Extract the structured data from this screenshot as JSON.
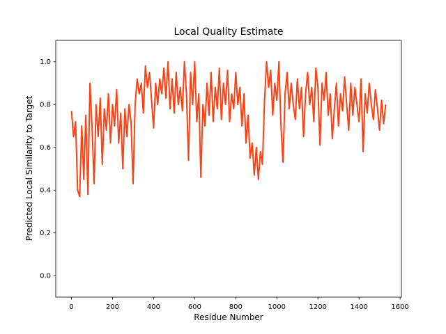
{
  "chart_data": {
    "type": "line",
    "title": "Local Quality Estimate",
    "xlabel": "Residue Number",
    "ylabel": "Predicted Local Similarity to Target",
    "xlim": [
      -76.5,
      1606.5
    ],
    "ylim": [
      -0.1,
      1.1
    ],
    "xticks": [
      0,
      200,
      400,
      600,
      800,
      1000,
      1200,
      1400,
      1600
    ],
    "yticks": [
      {
        "value": 0,
        "label": "0.0"
      },
      0.2,
      0.4,
      0.6,
      0.8,
      {
        "value": 1,
        "label": "1.0"
      }
    ],
    "grid": false,
    "x": [
      0,
      10,
      20,
      30,
      40,
      50,
      60,
      70,
      80,
      90,
      100,
      110,
      120,
      130,
      140,
      150,
      160,
      170,
      180,
      190,
      200,
      210,
      220,
      230,
      240,
      250,
      260,
      270,
      280,
      290,
      300,
      310,
      320,
      330,
      340,
      350,
      360,
      370,
      380,
      390,
      400,
      410,
      420,
      430,
      440,
      450,
      460,
      470,
      480,
      490,
      500,
      510,
      520,
      530,
      540,
      550,
      560,
      570,
      580,
      590,
      600,
      610,
      620,
      630,
      640,
      650,
      660,
      670,
      680,
      690,
      700,
      710,
      720,
      730,
      740,
      750,
      760,
      770,
      780,
      790,
      800,
      810,
      820,
      830,
      840,
      850,
      860,
      870,
      880,
      890,
      900,
      910,
      920,
      930,
      940,
      950,
      960,
      970,
      980,
      990,
      1000,
      1010,
      1020,
      1030,
      1040,
      1050,
      1060,
      1070,
      1080,
      1090,
      1100,
      1110,
      1120,
      1130,
      1140,
      1150,
      1160,
      1170,
      1180,
      1190,
      1200,
      1210,
      1220,
      1230,
      1240,
      1250,
      1260,
      1270,
      1280,
      1290,
      1300,
      1310,
      1320,
      1330,
      1340,
      1350,
      1360,
      1370,
      1380,
      1390,
      1400,
      1410,
      1420,
      1430,
      1440,
      1450,
      1460,
      1470,
      1480,
      1490,
      1500,
      1510,
      1520,
      1530
    ],
    "series": [
      {
        "name": null,
        "color": "#fc4114",
        "values": [
          0.77,
          0.65,
          0.72,
          0.4,
          0.37,
          0.7,
          0.45,
          0.75,
          0.38,
          0.9,
          0.7,
          0.43,
          0.8,
          0.65,
          0.83,
          0.52,
          0.78,
          0.68,
          0.85,
          0.62,
          0.8,
          0.7,
          0.87,
          0.62,
          0.76,
          0.5,
          0.78,
          0.65,
          0.8,
          0.72,
          0.43,
          0.8,
          0.92,
          0.85,
          0.9,
          0.76,
          0.98,
          0.88,
          0.95,
          0.82,
          0.69,
          0.9,
          0.8,
          0.92,
          0.85,
          0.97,
          0.83,
          1.0,
          0.78,
          0.92,
          0.76,
          0.95,
          0.8,
          0.88,
          0.77,
          1.0,
          0.85,
          0.54,
          0.95,
          0.8,
          1.0,
          0.72,
          0.85,
          0.46,
          0.8,
          0.7,
          0.9,
          0.75,
          0.95,
          0.72,
          0.88,
          0.78,
          0.97,
          0.73,
          0.9,
          0.8,
          0.96,
          0.72,
          0.85,
          0.78,
          0.95,
          0.8,
          0.88,
          0.7,
          0.85,
          0.62,
          0.75,
          0.55,
          0.62,
          0.47,
          0.6,
          0.45,
          0.58,
          0.52,
          0.82,
          1.0,
          0.88,
          0.96,
          0.75,
          0.9,
          0.82,
          1.0,
          0.7,
          0.53,
          0.85,
          0.95,
          0.78,
          0.9,
          0.8,
          0.73,
          0.92,
          0.78,
          0.88,
          0.65,
          0.85,
          0.95,
          0.8,
          0.88,
          0.72,
          0.97,
          0.88,
          0.61,
          0.9,
          0.82,
          0.95,
          0.75,
          0.85,
          0.64,
          0.78,
          0.9,
          0.7,
          0.85,
          0.77,
          0.93,
          0.8,
          0.68,
          0.9,
          0.75,
          0.88,
          0.8,
          0.72,
          0.92,
          0.58,
          0.85,
          0.76,
          0.9,
          0.8,
          0.73,
          0.87,
          0.78,
          0.68,
          0.82,
          0.71,
          0.8
        ]
      }
    ]
  }
}
